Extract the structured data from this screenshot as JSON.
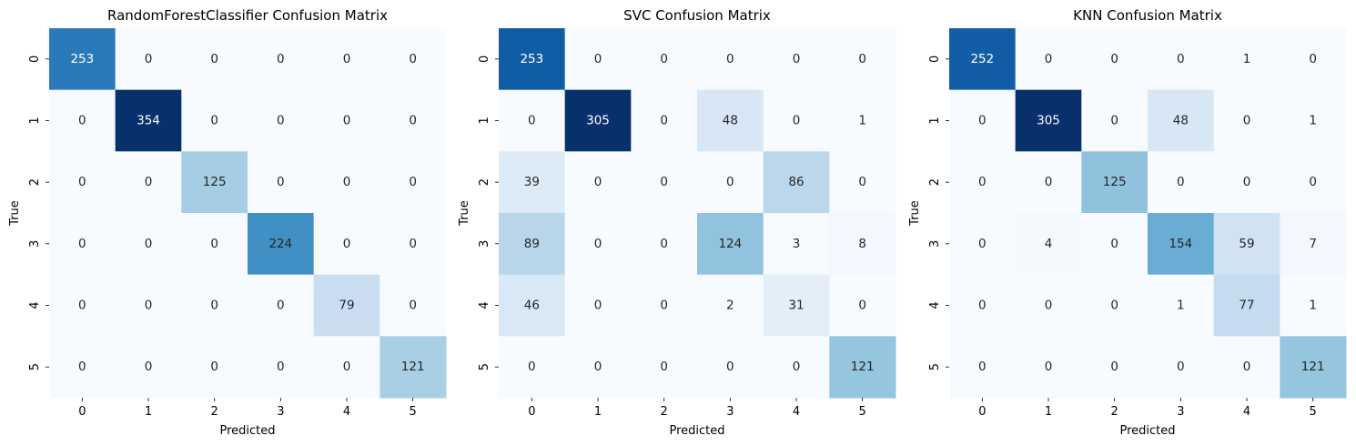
{
  "chart_data": [
    {
      "type": "heatmap",
      "title": "RandomForestClassifier Confusion Matrix",
      "xlabel": "Predicted",
      "ylabel": "True",
      "x_ticks": [
        "0",
        "1",
        "2",
        "3",
        "4",
        "5"
      ],
      "y_ticks": [
        "0",
        "1",
        "2",
        "3",
        "4",
        "5"
      ],
      "colormap": "Blues",
      "values": [
        [
          253,
          0,
          0,
          0,
          0,
          0
        ],
        [
          0,
          354,
          0,
          0,
          0,
          0
        ],
        [
          0,
          0,
          125,
          0,
          0,
          0
        ],
        [
          0,
          0,
          0,
          224,
          0,
          0
        ],
        [
          0,
          0,
          0,
          0,
          79,
          0
        ],
        [
          0,
          0,
          0,
          0,
          0,
          121
        ]
      ]
    },
    {
      "type": "heatmap",
      "title": "SVC Confusion Matrix",
      "xlabel": "Predicted",
      "ylabel": "True",
      "x_ticks": [
        "0",
        "1",
        "2",
        "3",
        "4",
        "5"
      ],
      "y_ticks": [
        "0",
        "1",
        "2",
        "3",
        "4",
        "5"
      ],
      "colormap": "Blues",
      "values": [
        [
          253,
          0,
          0,
          0,
          0,
          0
        ],
        [
          0,
          305,
          0,
          48,
          0,
          1
        ],
        [
          39,
          0,
          0,
          0,
          86,
          0
        ],
        [
          89,
          0,
          0,
          124,
          3,
          8
        ],
        [
          46,
          0,
          0,
          2,
          31,
          0
        ],
        [
          0,
          0,
          0,
          0,
          0,
          121
        ]
      ]
    },
    {
      "type": "heatmap",
      "title": "KNN Confusion Matrix",
      "xlabel": "Predicted",
      "ylabel": "True",
      "x_ticks": [
        "0",
        "1",
        "2",
        "3",
        "4",
        "5"
      ],
      "y_ticks": [
        "0",
        "1",
        "2",
        "3",
        "4",
        "5"
      ],
      "colormap": "Blues",
      "values": [
        [
          252,
          0,
          0,
          0,
          1,
          0
        ],
        [
          0,
          305,
          0,
          48,
          0,
          1
        ],
        [
          0,
          0,
          125,
          0,
          0,
          0
        ],
        [
          0,
          4,
          0,
          154,
          59,
          7
        ],
        [
          0,
          0,
          0,
          1,
          77,
          1
        ],
        [
          0,
          0,
          0,
          0,
          0,
          121
        ]
      ]
    }
  ]
}
